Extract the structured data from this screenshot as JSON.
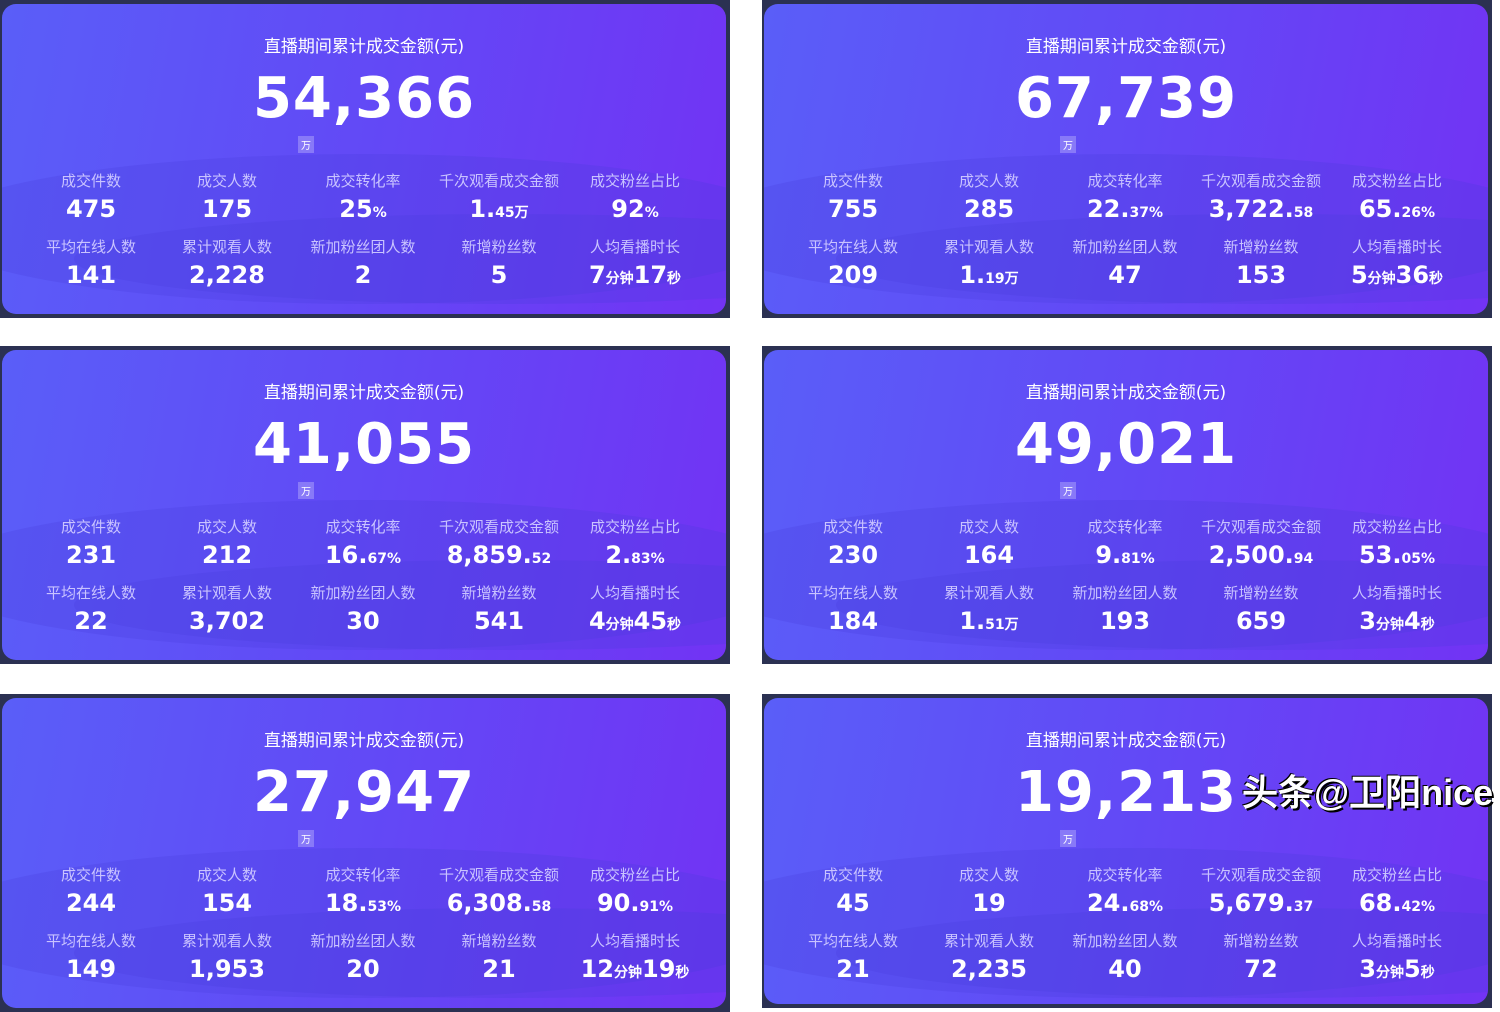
{
  "title": "直播期间累计成交金额(元)",
  "unit_badge": "万",
  "metric_labels": [
    "成交件数",
    "成交人数",
    "成交转化率",
    "千次观看成交金额",
    "成交粉丝占比",
    "平均在线人数",
    "累计观看人数",
    "新加粉丝团人数",
    "新增粉丝数",
    "人均看播时长"
  ],
  "cards": [
    {
      "total": "54,366",
      "values": [
        [
          "475"
        ],
        [
          "175"
        ],
        [
          "25",
          "%"
        ],
        [
          "1.",
          "45万"
        ],
        [
          "92",
          "%"
        ],
        [
          "141"
        ],
        [
          "2,228"
        ],
        [
          "2"
        ],
        [
          "5"
        ],
        [
          "7",
          "分钟",
          "17",
          "秒"
        ]
      ]
    },
    {
      "total": "67,739",
      "values": [
        [
          "755"
        ],
        [
          "285"
        ],
        [
          "22.",
          "37%"
        ],
        [
          "3,722.",
          "58"
        ],
        [
          "65.",
          "26%"
        ],
        [
          "209"
        ],
        [
          "1.",
          "19万"
        ],
        [
          "47"
        ],
        [
          "153"
        ],
        [
          "5",
          "分钟",
          "36",
          "秒"
        ]
      ]
    },
    {
      "total": "41,055",
      "values": [
        [
          "231"
        ],
        [
          "212"
        ],
        [
          "16.",
          "67%"
        ],
        [
          "8,859.",
          "52"
        ],
        [
          "2.",
          "83%"
        ],
        [
          "22"
        ],
        [
          "3,702"
        ],
        [
          "30"
        ],
        [
          "541"
        ],
        [
          "4",
          "分钟",
          "45",
          "秒"
        ]
      ]
    },
    {
      "total": "49,021",
      "values": [
        [
          "230"
        ],
        [
          "164"
        ],
        [
          "9.",
          "81%"
        ],
        [
          "2,500.",
          "94"
        ],
        [
          "53.",
          "05%"
        ],
        [
          "184"
        ],
        [
          "1.",
          "51万"
        ],
        [
          "193"
        ],
        [
          "659"
        ],
        [
          "3",
          "分钟",
          "4",
          "秒"
        ]
      ]
    },
    {
      "total": "27,947",
      "values": [
        [
          "244"
        ],
        [
          "154"
        ],
        [
          "18.",
          "53%"
        ],
        [
          "6,308.",
          "58"
        ],
        [
          "90.",
          "91%"
        ],
        [
          "149"
        ],
        [
          "1,953"
        ],
        [
          "20"
        ],
        [
          "21"
        ],
        [
          "12",
          "分钟",
          "19",
          "秒"
        ]
      ]
    },
    {
      "total": "19,213",
      "values": [
        [
          "45"
        ],
        [
          "19"
        ],
        [
          "24.",
          "68%"
        ],
        [
          "5,679.",
          "37"
        ],
        [
          "68.",
          "42%"
        ],
        [
          "21"
        ],
        [
          "2,235"
        ],
        [
          "40"
        ],
        [
          "72"
        ],
        [
          "3",
          "分钟",
          "5",
          "秒"
        ]
      ]
    }
  ],
  "watermark": "头条@卫阳nice",
  "colors": {
    "card_start": "#5a5ef8",
    "card_end": "#7233f4",
    "frame": "#2b3152"
  }
}
